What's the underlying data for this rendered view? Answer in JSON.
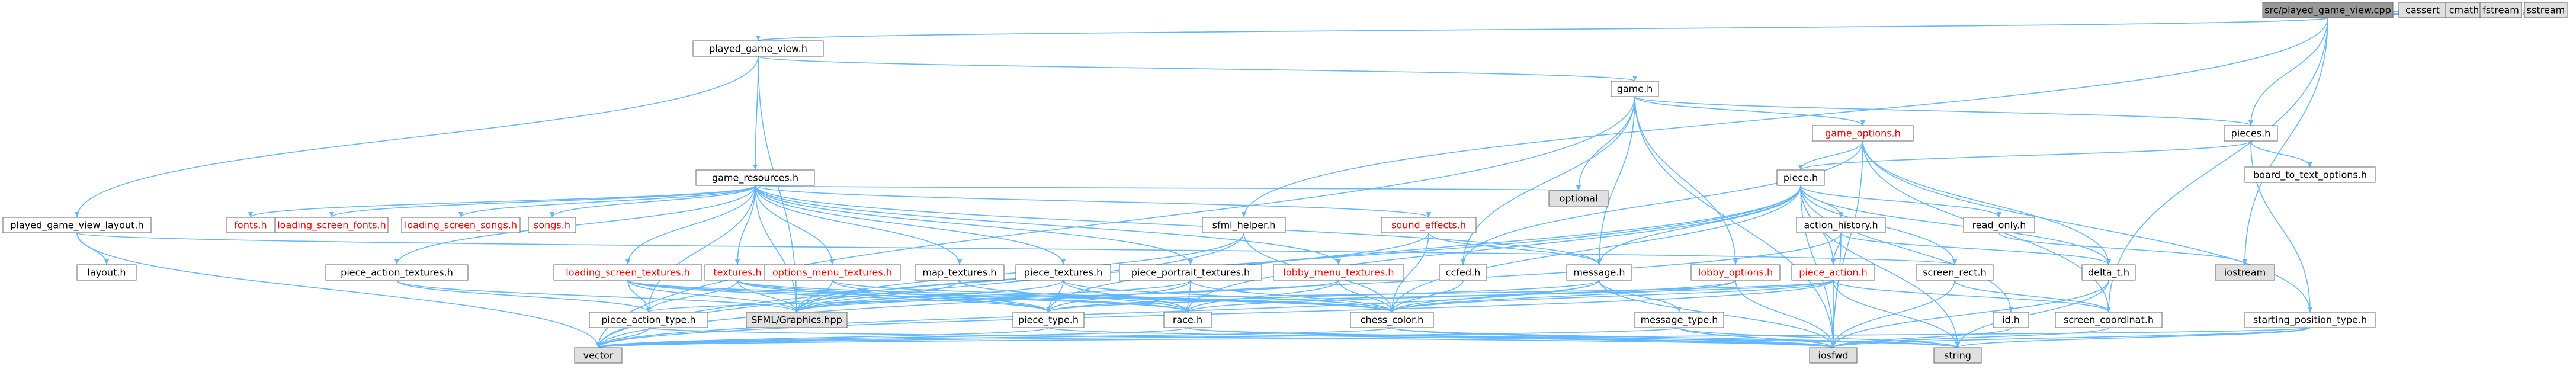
{
  "colors": {
    "edge": "#63b8ff",
    "node_border": "#666666",
    "node_fill": "#ffffff",
    "root_fill": "#999999",
    "system_fill": "#e0e0e0",
    "text": "#000000",
    "missing_text": "#ff0000"
  },
  "nodes": [
    {
      "id": "root",
      "label": "src/played_game_view.cpp",
      "kind": "root"
    },
    {
      "id": "cassert",
      "label": "cassert",
      "kind": "system"
    },
    {
      "id": "cmath",
      "label": "cmath",
      "kind": "system"
    },
    {
      "id": "fstream",
      "label": "fstream",
      "kind": "system"
    },
    {
      "id": "sstream",
      "label": "sstream",
      "kind": "system"
    },
    {
      "id": "pgv_h",
      "label": "played_game_view.h",
      "kind": "normal"
    },
    {
      "id": "game_h",
      "label": "game.h",
      "kind": "normal"
    },
    {
      "id": "pieces_h",
      "label": "pieces.h",
      "kind": "normal"
    },
    {
      "id": "game_options_h",
      "label": "game_options.h",
      "kind": "missing"
    },
    {
      "id": "board_to_text",
      "label": "board_to_text_options.h",
      "kind": "normal"
    },
    {
      "id": "piece_h",
      "label": "piece.h",
      "kind": "normal"
    },
    {
      "id": "game_resources_h",
      "label": "game_resources.h",
      "kind": "normal"
    },
    {
      "id": "optional",
      "label": "optional",
      "kind": "system"
    },
    {
      "id": "pgvl_h",
      "label": "played_game_view_layout.h",
      "kind": "normal"
    },
    {
      "id": "layout_h",
      "label": "layout.h",
      "kind": "normal"
    },
    {
      "id": "fonts_h",
      "label": "fonts.h",
      "kind": "missing"
    },
    {
      "id": "ls_fonts_h",
      "label": "loading_screen_fonts.h",
      "kind": "missing"
    },
    {
      "id": "ls_songs_h",
      "label": "loading_screen_songs.h",
      "kind": "missing"
    },
    {
      "id": "songs_h",
      "label": "songs.h",
      "kind": "missing"
    },
    {
      "id": "sound_effects_h",
      "label": "sound_effects.h",
      "kind": "missing"
    },
    {
      "id": "sfml_helper_h",
      "label": "sfml_helper.h",
      "kind": "normal"
    },
    {
      "id": "action_history_h",
      "label": "action_history.h",
      "kind": "normal"
    },
    {
      "id": "read_only_h",
      "label": "read_only.h",
      "kind": "normal"
    },
    {
      "id": "pat_h",
      "label": "piece_action_textures.h",
      "kind": "normal"
    },
    {
      "id": "ls_textures_h",
      "label": "loading_screen_textures.h",
      "kind": "missing"
    },
    {
      "id": "textures_h",
      "label": "textures.h",
      "kind": "missing"
    },
    {
      "id": "omt_h",
      "label": "options_menu_textures.h",
      "kind": "missing"
    },
    {
      "id": "map_textures_h",
      "label": "map_textures.h",
      "kind": "normal"
    },
    {
      "id": "piece_textures_h",
      "label": "piece_textures.h",
      "kind": "normal"
    },
    {
      "id": "ppt_h",
      "label": "piece_portrait_textures.h",
      "kind": "normal"
    },
    {
      "id": "lmt_h",
      "label": "lobby_menu_textures.h",
      "kind": "missing"
    },
    {
      "id": "ccfed_h",
      "label": "ccfed.h",
      "kind": "normal"
    },
    {
      "id": "message_h",
      "label": "message.h",
      "kind": "normal"
    },
    {
      "id": "lobby_options_h",
      "label": "lobby_options.h",
      "kind": "missing"
    },
    {
      "id": "piece_action_h",
      "label": "piece_action.h",
      "kind": "missing"
    },
    {
      "id": "screen_rect_h",
      "label": "screen_rect.h",
      "kind": "normal"
    },
    {
      "id": "delta_t_h",
      "label": "delta_t.h",
      "kind": "normal"
    },
    {
      "id": "iostream",
      "label": "iostream",
      "kind": "system"
    },
    {
      "id": "sfml_graphics",
      "label": "SFML/Graphics.hpp",
      "kind": "system"
    },
    {
      "id": "piece_action_type_h",
      "label": "piece_action_type.h",
      "kind": "normal"
    },
    {
      "id": "piece_type_h",
      "label": "piece_type.h",
      "kind": "normal"
    },
    {
      "id": "race_h",
      "label": "race.h",
      "kind": "normal"
    },
    {
      "id": "chess_color_h",
      "label": "chess_color.h",
      "kind": "normal"
    },
    {
      "id": "message_type_h",
      "label": "message_type.h",
      "kind": "normal"
    },
    {
      "id": "id_h",
      "label": "id.h",
      "kind": "normal"
    },
    {
      "id": "screen_coord_h",
      "label": "screen_coordinat.h",
      "kind": "normal"
    },
    {
      "id": "spt_h",
      "label": "starting_position_type.h",
      "kind": "normal"
    },
    {
      "id": "vector",
      "label": "vector",
      "kind": "system"
    },
    {
      "id": "iosfwd",
      "label": "iosfwd",
      "kind": "system"
    },
    {
      "id": "string",
      "label": "string",
      "kind": "system"
    }
  ],
  "edges": [
    [
      "root",
      "cassert"
    ],
    [
      "root",
      "cmath"
    ],
    [
      "root",
      "fstream"
    ],
    [
      "root",
      "sstream"
    ],
    [
      "root",
      "pgv_h"
    ],
    [
      "root",
      "pieces_h"
    ],
    [
      "root",
      "iostream"
    ],
    [
      "root",
      "screen_coord_h"
    ],
    [
      "root",
      "sfml_helper_h"
    ],
    [
      "pgv_h",
      "game_h"
    ],
    [
      "pgv_h",
      "game_resources_h"
    ],
    [
      "pgv_h",
      "pgvl_h"
    ],
    [
      "pgv_h",
      "sfml_graphics"
    ],
    [
      "game_h",
      "game_options_h"
    ],
    [
      "game_h",
      "pieces_h"
    ],
    [
      "game_h",
      "lobby_options_h"
    ],
    [
      "game_h",
      "optional"
    ],
    [
      "game_h",
      "vector"
    ],
    [
      "game_h",
      "message_h"
    ],
    [
      "game_h",
      "ccfed_h"
    ],
    [
      "game_h",
      "iosfwd"
    ],
    [
      "pieces_h",
      "piece_h"
    ],
    [
      "pieces_h",
      "board_to_text"
    ],
    [
      "pieces_h",
      "spt_h"
    ],
    [
      "game_options_h",
      "piece_h"
    ],
    [
      "game_options_h",
      "delta_t_h"
    ],
    [
      "game_options_h",
      "screen_coord_h"
    ],
    [
      "game_options_h",
      "spt_h"
    ],
    [
      "game_options_h",
      "iosfwd"
    ],
    [
      "game_options_h",
      "ccfed_h"
    ],
    [
      "piece_h",
      "action_history_h"
    ],
    [
      "piece_h",
      "read_only_h"
    ],
    [
      "piece_h",
      "delta_t_h"
    ],
    [
      "piece_h",
      "piece_action_h"
    ],
    [
      "piece_h",
      "screen_rect_h"
    ],
    [
      "piece_h",
      "message_h"
    ],
    [
      "piece_h",
      "id_h"
    ],
    [
      "piece_h",
      "race_h"
    ],
    [
      "piece_h",
      "chess_color_h"
    ],
    [
      "piece_h",
      "piece_type_h"
    ],
    [
      "piece_h",
      "vector"
    ],
    [
      "piece_h",
      "iosfwd"
    ],
    [
      "piece_h",
      "string"
    ],
    [
      "game_resources_h",
      "fonts_h"
    ],
    [
      "game_resources_h",
      "ls_fonts_h"
    ],
    [
      "game_resources_h",
      "ls_songs_h"
    ],
    [
      "game_resources_h",
      "songs_h"
    ],
    [
      "game_resources_h",
      "sound_effects_h"
    ],
    [
      "game_resources_h",
      "pat_h"
    ],
    [
      "game_resources_h",
      "ls_textures_h"
    ],
    [
      "game_resources_h",
      "textures_h"
    ],
    [
      "game_resources_h",
      "omt_h"
    ],
    [
      "game_resources_h",
      "map_textures_h"
    ],
    [
      "game_resources_h",
      "piece_textures_h"
    ],
    [
      "game_resources_h",
      "ppt_h"
    ],
    [
      "game_resources_h",
      "lmt_h"
    ],
    [
      "game_resources_h",
      "optional"
    ],
    [
      "game_resources_h",
      "sfml_graphics"
    ],
    [
      "game_resources_h",
      "message_h"
    ],
    [
      "game_resources_h",
      "piece_action_type_h"
    ],
    [
      "pgvl_h",
      "layout_h"
    ],
    [
      "pgvl_h",
      "screen_rect_h"
    ],
    [
      "pgvl_h",
      "vector"
    ],
    [
      "sound_effects_h",
      "message_h"
    ],
    [
      "sound_effects_h",
      "chess_color_h"
    ],
    [
      "sound_effects_h",
      "sfml_graphics"
    ],
    [
      "sfml_helper_h",
      "chess_color_h"
    ],
    [
      "sfml_helper_h",
      "sfml_graphics"
    ],
    [
      "sfml_helper_h",
      "vector"
    ],
    [
      "action_history_h",
      "piece_action_h"
    ],
    [
      "action_history_h",
      "delta_t_h"
    ],
    [
      "action_history_h",
      "vector"
    ],
    [
      "action_history_h",
      "iosfwd"
    ],
    [
      "read_only_h",
      "iostream"
    ],
    [
      "pat_h",
      "piece_action_type_h"
    ],
    [
      "pat_h",
      "sfml_graphics"
    ],
    [
      "ls_textures_h",
      "sfml_graphics"
    ],
    [
      "ls_textures_h",
      "piece_type_h"
    ],
    [
      "ls_textures_h",
      "race_h"
    ],
    [
      "ls_textures_h",
      "chess_color_h"
    ],
    [
      "ls_textures_h",
      "piece_action_type_h"
    ],
    [
      "textures_h",
      "sfml_graphics"
    ],
    [
      "textures_h",
      "piece_type_h"
    ],
    [
      "textures_h",
      "chess_color_h"
    ],
    [
      "textures_h",
      "race_h"
    ],
    [
      "textures_h",
      "piece_action_type_h"
    ],
    [
      "omt_h",
      "sfml_graphics"
    ],
    [
      "omt_h",
      "piece_type_h"
    ],
    [
      "omt_h",
      "chess_color_h"
    ],
    [
      "map_textures_h",
      "sfml_graphics"
    ],
    [
      "map_textures_h",
      "race_h"
    ],
    [
      "piece_textures_h",
      "sfml_graphics"
    ],
    [
      "piece_textures_h",
      "piece_type_h"
    ],
    [
      "piece_textures_h",
      "race_h"
    ],
    [
      "piece_textures_h",
      "chess_color_h"
    ],
    [
      "ppt_h",
      "sfml_graphics"
    ],
    [
      "ppt_h",
      "piece_type_h"
    ],
    [
      "ppt_h",
      "race_h"
    ],
    [
      "ppt_h",
      "chess_color_h"
    ],
    [
      "lmt_h",
      "sfml_graphics"
    ],
    [
      "lmt_h",
      "chess_color_h"
    ],
    [
      "lmt_h",
      "race_h"
    ],
    [
      "message_h",
      "message_type_h"
    ],
    [
      "message_h",
      "chess_color_h"
    ],
    [
      "message_h",
      "piece_type_h"
    ],
    [
      "message_h",
      "iosfwd"
    ],
    [
      "message_h",
      "vector"
    ],
    [
      "lobby_options_h",
      "race_h"
    ],
    [
      "lobby_options_h",
      "chess_color_h"
    ],
    [
      "lobby_options_h",
      "iosfwd"
    ],
    [
      "piece_action_h",
      "piece_action_type_h"
    ],
    [
      "piece_action_h",
      "piece_type_h"
    ],
    [
      "piece_action_h",
      "chess_color_h"
    ],
    [
      "piece_action_h",
      "screen_coord_h"
    ],
    [
      "piece_action_h",
      "vector"
    ],
    [
      "piece_action_h",
      "iosfwd"
    ],
    [
      "piece_action_h",
      "string"
    ],
    [
      "screen_rect_h",
      "screen_coord_h"
    ],
    [
      "screen_rect_h",
      "iosfwd"
    ],
    [
      "delta_t_h",
      "iosfwd"
    ],
    [
      "delta_t_h",
      "string"
    ],
    [
      "piece_action_type_h",
      "iosfwd"
    ],
    [
      "piece_action_type_h",
      "vector"
    ],
    [
      "piece_type_h",
      "vector"
    ],
    [
      "piece_type_h",
      "iosfwd"
    ],
    [
      "race_h",
      "iosfwd"
    ],
    [
      "race_h",
      "vector"
    ],
    [
      "race_h",
      "string"
    ],
    [
      "chess_color_h",
      "iosfwd"
    ],
    [
      "chess_color_h",
      "vector"
    ],
    [
      "chess_color_h",
      "string"
    ],
    [
      "message_type_h",
      "iosfwd"
    ],
    [
      "message_type_h",
      "string"
    ],
    [
      "message_type_h",
      "vector"
    ],
    [
      "id_h",
      "iosfwd"
    ],
    [
      "screen_coord_h",
      "iosfwd"
    ],
    [
      "spt_h",
      "iosfwd"
    ],
    [
      "spt_h",
      "string"
    ],
    [
      "spt_h",
      "vector"
    ],
    [
      "ccfed_h",
      "chess_color_h"
    ]
  ]
}
